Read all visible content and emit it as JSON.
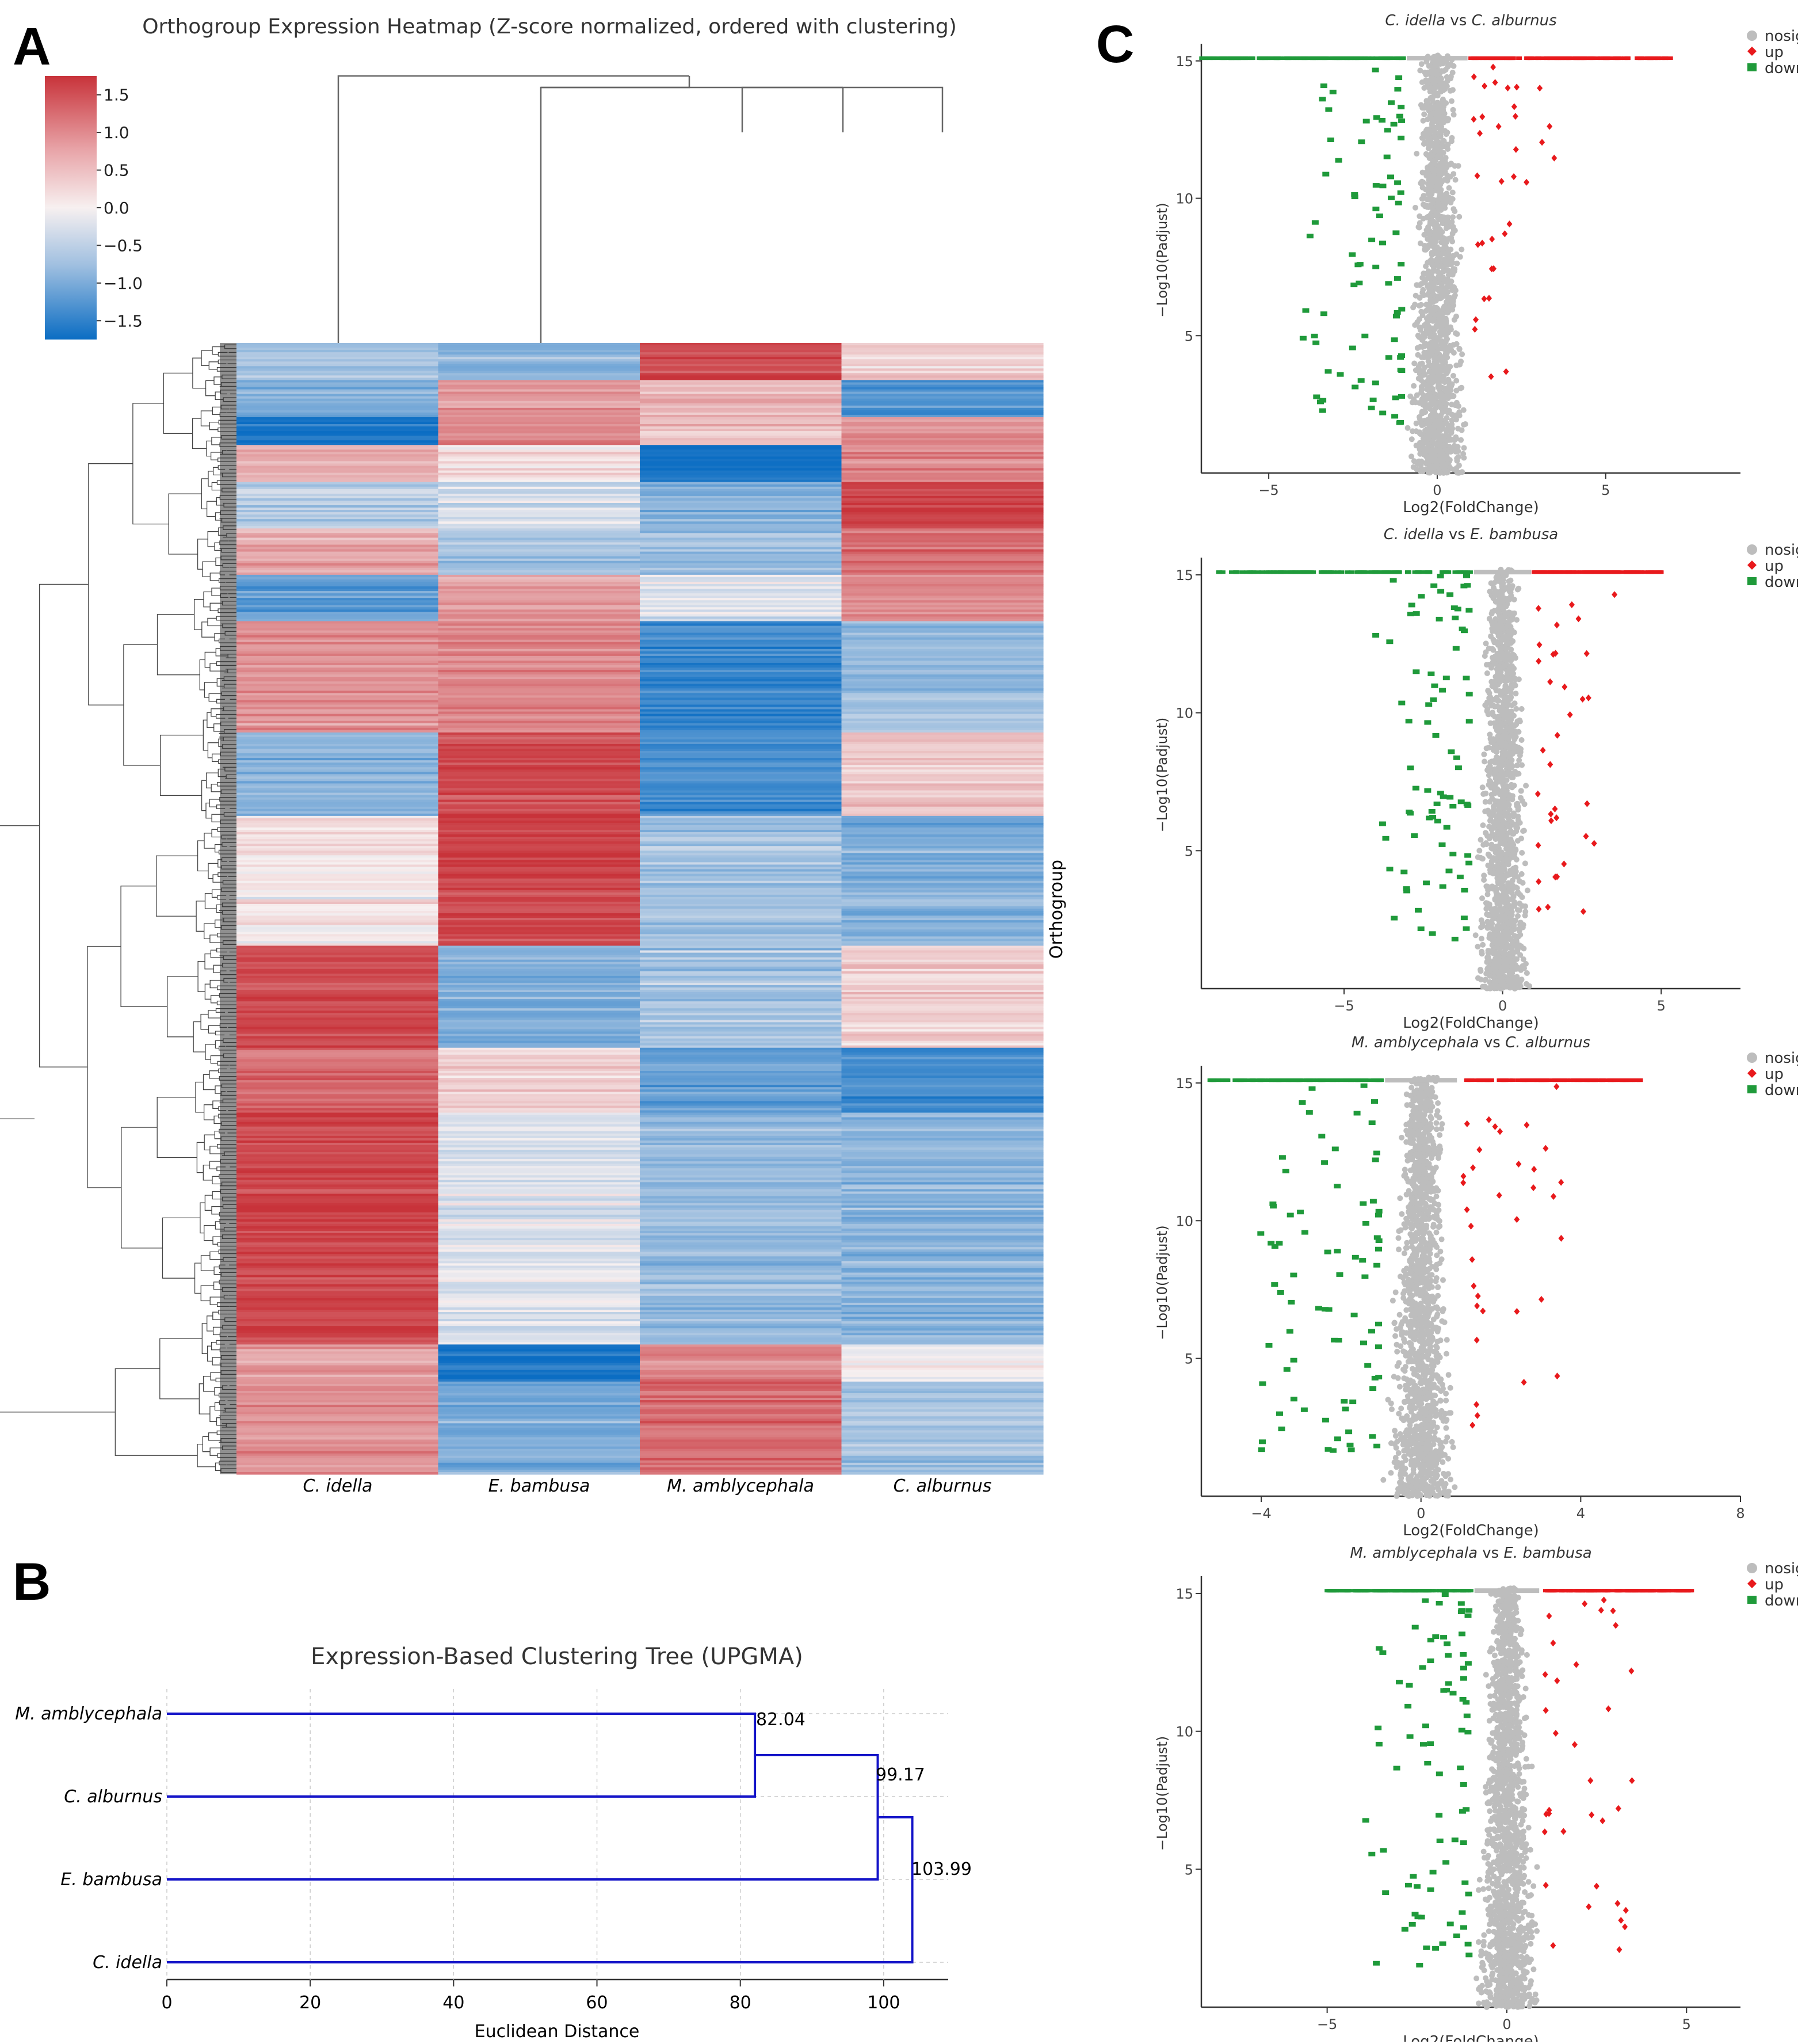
{
  "panel_labels": {
    "a": "A",
    "b": "B",
    "c": "C"
  },
  "colors": {
    "heat_high": "#c8333a",
    "heat_mid": "#f7f0f0",
    "heat_low": "#0b6dc3",
    "dendro_line": "#666666",
    "upgma_line": "#1414c8",
    "nosig": "#bdbdbd",
    "up": "#e8191c",
    "down": "#1f9a3a"
  },
  "heatmap": {
    "title": "Orthogroup Expression Heatmap (Z-score normalized, ordered with clustering)",
    "colorbar_ticks": [
      "1.5",
      "1.0",
      "0.5",
      "0.0",
      "−0.5",
      "−1.0",
      "−1.5"
    ],
    "colorbar_values": [
      1.5,
      1.0,
      0.5,
      0.0,
      -0.5,
      -1.0,
      -1.5
    ],
    "colorbar_range": [
      -1.75,
      1.75
    ],
    "columns": [
      "C. idella",
      "E. bambusa",
      "M. amblycephala",
      "C. alburnus"
    ],
    "row_axis_label": "Orthogroup"
  },
  "upgma": {
    "title": "Expression-Based Clustering Tree (UPGMA)",
    "xlabel": "Euclidean Distance",
    "xticks": [
      "0",
      "20",
      "40",
      "60",
      "80",
      "100"
    ],
    "xtick_values": [
      0,
      20,
      40,
      60,
      80,
      100
    ],
    "xlim": [
      0,
      109
    ],
    "leaves": [
      "M. amblycephala",
      "C. alburnus",
      "E. bambusa",
      "C. idella"
    ],
    "merges": [
      {
        "children": [
          "M. amblycephala",
          "C. alburnus"
        ],
        "height": 82.04,
        "label": "82.04"
      },
      {
        "children": [
          "cluster1",
          "E. bambusa"
        ],
        "height": 99.17,
        "label": "99.17"
      },
      {
        "children": [
          "cluster2",
          "C. idella"
        ],
        "height": 103.99,
        "label": "103.99"
      }
    ]
  },
  "volcano": {
    "legend": [
      "nosig",
      "up",
      "down"
    ],
    "xlabel": "Log2(FoldChange)",
    "ylabel": "−Log10(Padjust)",
    "plots": [
      {
        "title_a": "C. idella",
        "title_vs": " vs ",
        "title_b": "C. alburnus",
        "xlim": [
          -7,
          9
        ],
        "xticks": [
          -5,
          0,
          5
        ],
        "xtick_labels": [
          "−5",
          "0",
          "5"
        ],
        "ylim": [
          0,
          15.5
        ],
        "yticks": [
          5,
          10,
          15
        ],
        "ytick_labels": [
          "5",
          "10",
          "15"
        ],
        "cap_left": -7,
        "cap_right": 7
      },
      {
        "title_a": "C. idella",
        "title_vs": " vs ",
        "title_b": "E. bambusa",
        "xlim": [
          -9.5,
          7.5
        ],
        "xticks": [
          -5,
          0,
          5
        ],
        "xtick_labels": [
          "−5",
          "0",
          "5"
        ],
        "ylim": [
          0,
          15.5
        ],
        "yticks": [
          5,
          10,
          15
        ],
        "ytick_labels": [
          "5",
          "10",
          "15"
        ],
        "cap_left": -9,
        "cap_right": 5
      },
      {
        "title_a": "M. amblycephala",
        "title_vs": " vs ",
        "title_b": "C. alburnus",
        "xlim": [
          -5.5,
          8
        ],
        "xticks": [
          -4,
          0,
          4,
          8
        ],
        "xtick_labels": [
          "−4",
          "0",
          "4",
          "8"
        ],
        "ylim": [
          0,
          15.5
        ],
        "yticks": [
          5,
          10,
          15
        ],
        "ytick_labels": [
          "5",
          "10",
          "15"
        ],
        "cap_left": -5.3,
        "cap_right": 5.5
      },
      {
        "title_a": "M. amblycephala",
        "title_vs": " vs ",
        "title_b": "E. bambusa",
        "xlim": [
          -8.5,
          6.5
        ],
        "xticks": [
          -5,
          0,
          5
        ],
        "xtick_labels": [
          "−5",
          "0",
          "5"
        ],
        "ylim": [
          0,
          15.5
        ],
        "yticks": [
          5,
          10,
          15
        ],
        "ytick_labels": [
          "5",
          "10",
          "15"
        ],
        "cap_left": -5,
        "cap_right": 5.2
      }
    ]
  },
  "chart_data": [
    {
      "type": "heatmap",
      "title": "Orthogroup Expression Heatmap (Z-score normalized, ordered with clustering)",
      "columns": [
        "C. idella",
        "E. bambusa",
        "M. amblycephala",
        "C. alburnus"
      ],
      "ylabel": "Orthogroup",
      "value_range": [
        -1.75,
        1.75
      ],
      "row_blocks": [
        {
          "rows": 8,
          "values": [
            -0.6,
            -0.8,
            1.6,
            0.3
          ]
        },
        {
          "rows": 8,
          "values": [
            -0.8,
            0.8,
            0.6,
            -1.2
          ]
        },
        {
          "rows": 6,
          "values": [
            -1.7,
            1.0,
            0.5,
            0.9
          ]
        },
        {
          "rows": 8,
          "values": [
            0.6,
            0.2,
            -1.7,
            1.0
          ]
        },
        {
          "rows": 10,
          "values": [
            -0.5,
            -0.3,
            -0.8,
            1.6
          ]
        },
        {
          "rows": 10,
          "values": [
            0.7,
            -0.6,
            -0.6,
            1.2
          ]
        },
        {
          "rows": 10,
          "values": [
            -1.1,
            0.8,
            -0.2,
            1.0
          ]
        },
        {
          "rows": 24,
          "values": [
            0.9,
            1.0,
            -1.4,
            -0.7
          ]
        },
        {
          "rows": 18,
          "values": [
            -0.8,
            1.5,
            -1.3,
            0.4
          ]
        },
        {
          "rows": 28,
          "values": [
            0.1,
            1.6,
            -0.6,
            -0.9
          ]
        },
        {
          "rows": 22,
          "values": [
            1.5,
            -0.9,
            -0.6,
            0.3
          ]
        },
        {
          "rows": 14,
          "values": [
            1.3,
            0.3,
            -1.1,
            -1.3
          ]
        },
        {
          "rows": 50,
          "values": [
            1.6,
            -0.2,
            -0.7,
            -0.8
          ]
        },
        {
          "rows": 8,
          "values": [
            0.7,
            -1.7,
            1.0,
            0.0
          ]
        },
        {
          "rows": 20,
          "values": [
            0.9,
            -0.9,
            1.2,
            -0.6
          ]
        }
      ]
    },
    {
      "type": "dendrogram",
      "title": "Expression-Based Clustering Tree (UPGMA)",
      "xlabel": "Euclidean Distance",
      "xlim": [
        0,
        109
      ],
      "leaves": [
        "M. amblycephala",
        "C. alburnus",
        "E. bambusa",
        "C. idella"
      ],
      "merge_heights": [
        82.04,
        99.17,
        103.99
      ]
    },
    {
      "type": "scatter",
      "title": "C. idella vs C. alburnus",
      "xlabel": "Log2(FoldChange)",
      "ylabel": "−Log10(Padjust)",
      "xlim": [
        -7,
        9
      ],
      "ylim": [
        0,
        15.5
      ],
      "series": [
        {
          "name": "nosig"
        },
        {
          "name": "up"
        },
        {
          "name": "down"
        }
      ]
    },
    {
      "type": "scatter",
      "title": "C. idella vs E. bambusa",
      "xlabel": "Log2(FoldChange)",
      "ylabel": "−Log10(Padjust)",
      "xlim": [
        -9.5,
        7.5
      ],
      "ylim": [
        0,
        15.5
      ],
      "series": [
        {
          "name": "nosig"
        },
        {
          "name": "up"
        },
        {
          "name": "down"
        }
      ]
    },
    {
      "type": "scatter",
      "title": "M. amblycephala vs C. alburnus",
      "xlabel": "Log2(FoldChange)",
      "ylabel": "−Log10(Padjust)",
      "xlim": [
        -5.5,
        8
      ],
      "ylim": [
        0,
        15.5
      ],
      "series": [
        {
          "name": "nosig"
        },
        {
          "name": "up"
        },
        {
          "name": "down"
        }
      ]
    },
    {
      "type": "scatter",
      "title": "M. amblycephala vs E. bambusa",
      "xlabel": "Log2(FoldChange)",
      "ylabel": "−Log10(Padjust)",
      "xlim": [
        -8.5,
        6.5
      ],
      "ylim": [
        0,
        15.5
      ],
      "series": [
        {
          "name": "nosig"
        },
        {
          "name": "up"
        },
        {
          "name": "down"
        }
      ]
    }
  ]
}
